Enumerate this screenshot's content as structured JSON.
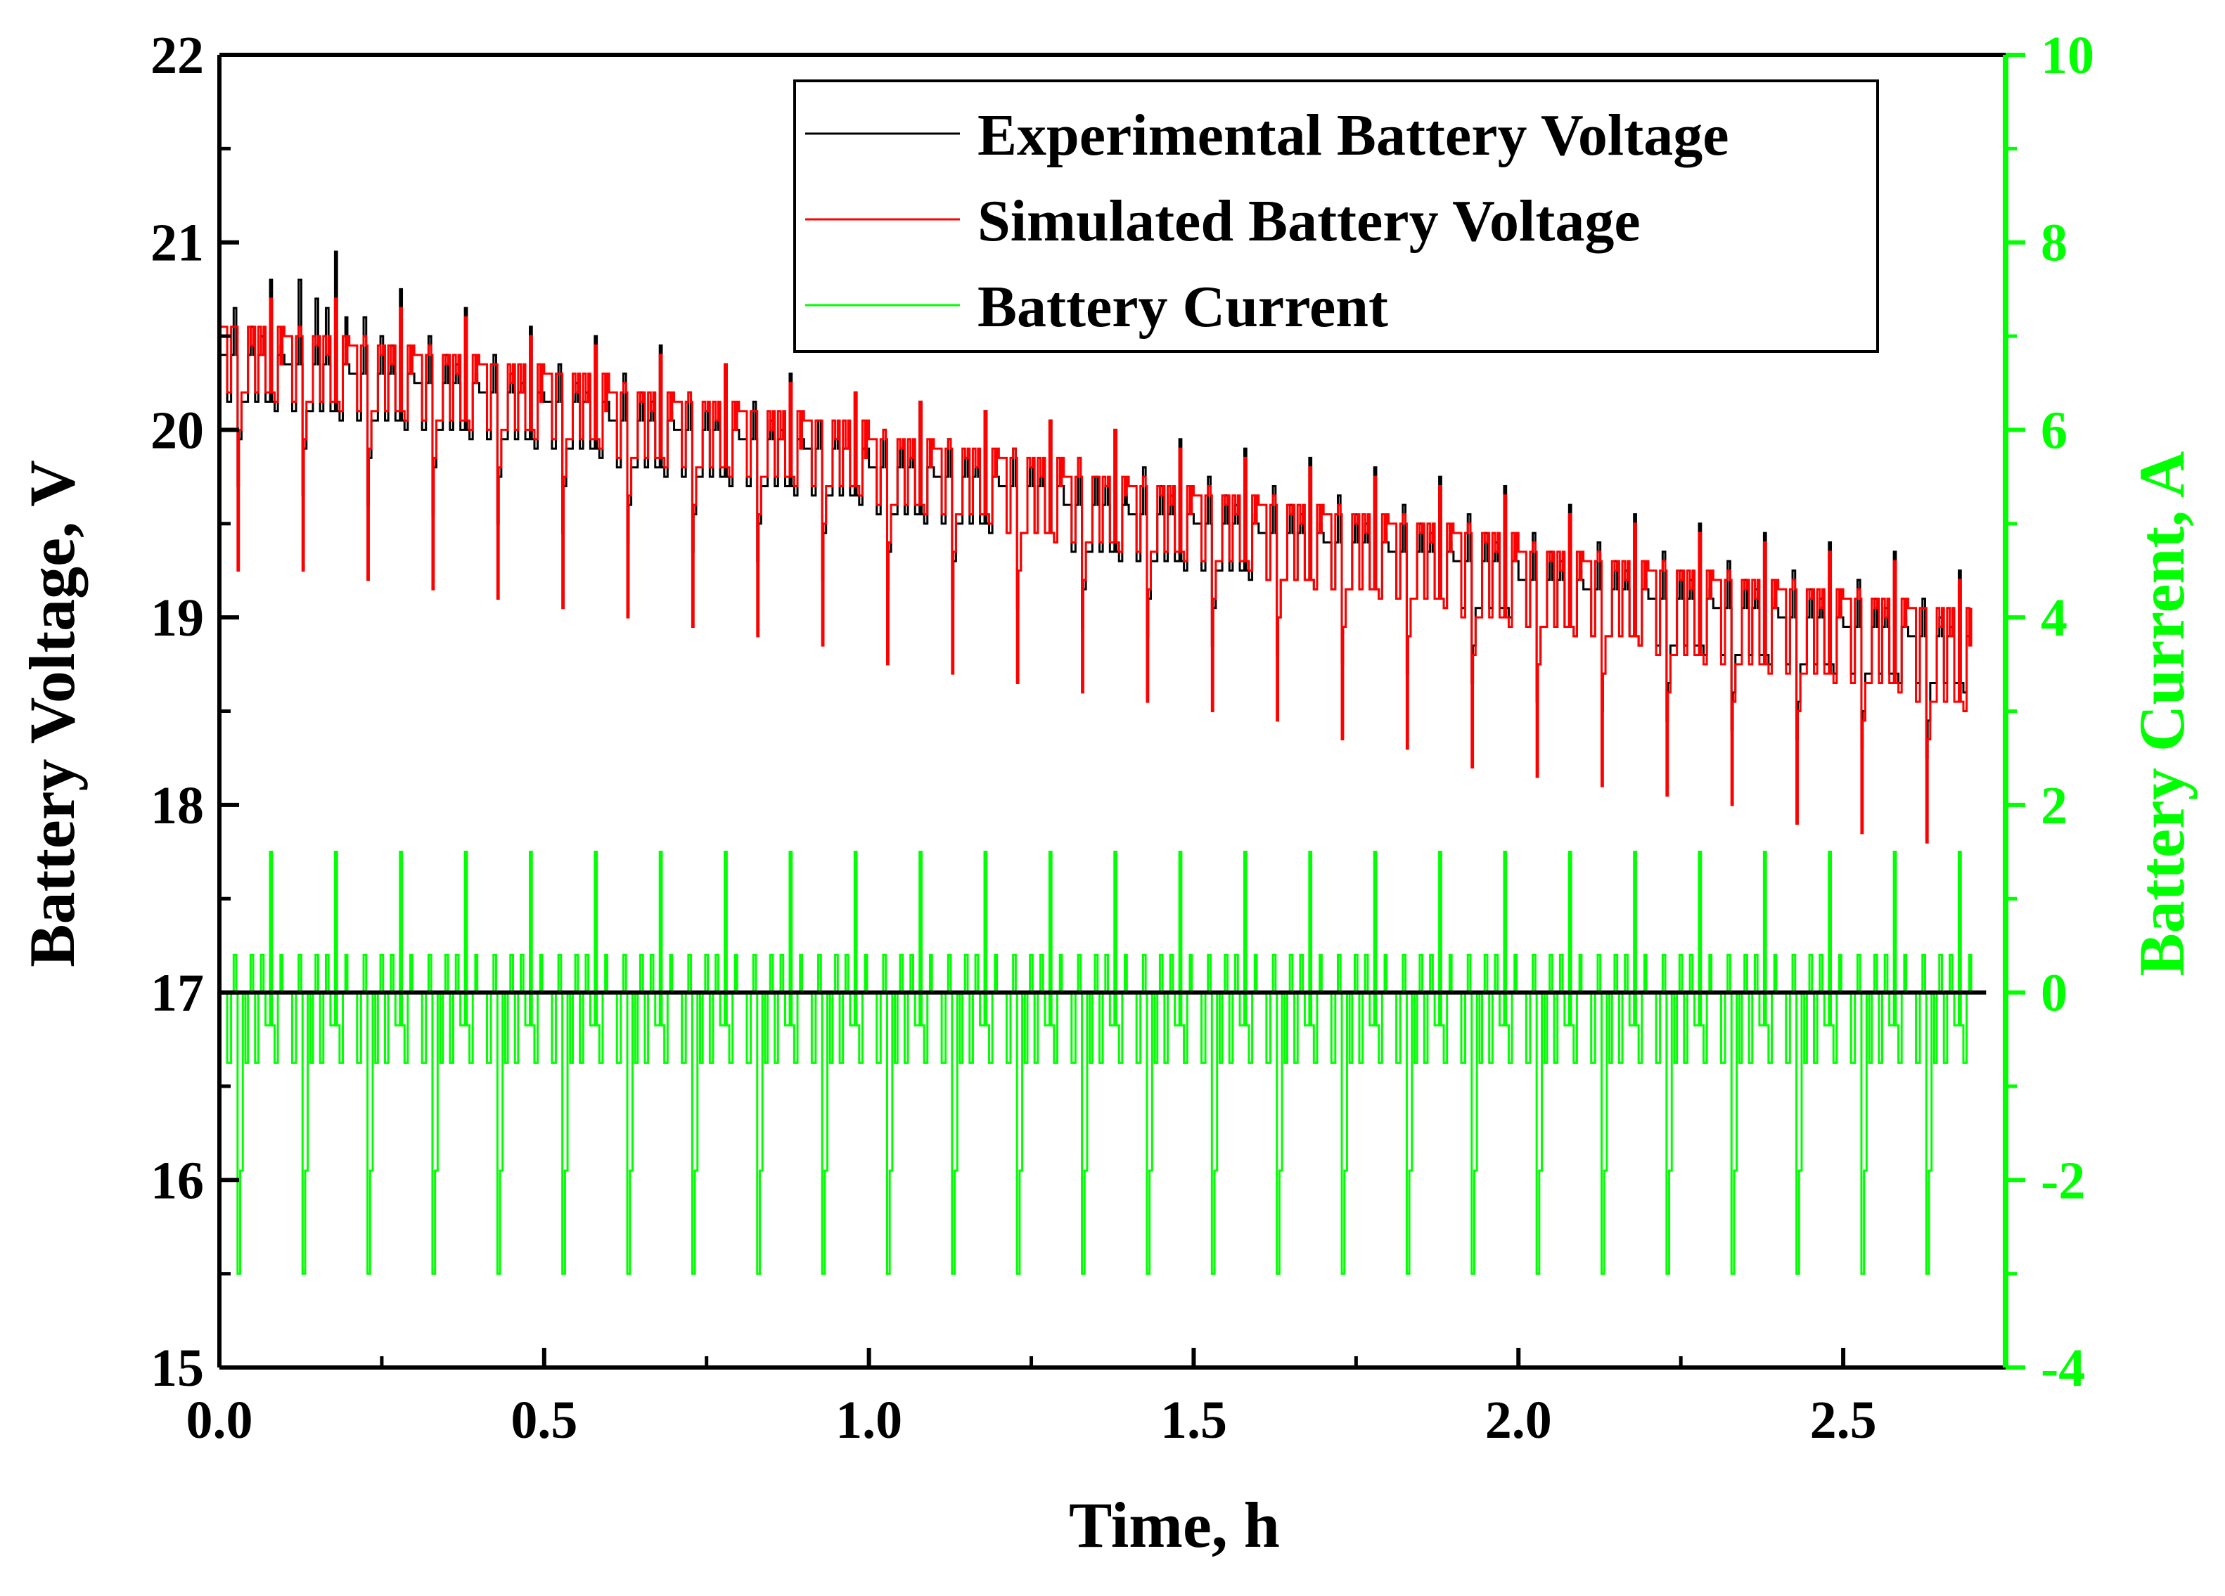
{
  "chart_data": {
    "type": "line",
    "title": "",
    "xlabel": "Time, h",
    "ylabel": "Battery Voltage, V",
    "y2label": "Battery Current, A",
    "xlim": [
      0.0,
      2.75
    ],
    "ylim": [
      15,
      22
    ],
    "y2lim": [
      -4,
      10
    ],
    "x_ticks": [
      "0.0",
      "0.5",
      "1.0",
      "1.5",
      "2.0",
      "2.5"
    ],
    "x_tick_values": [
      0.0,
      0.5,
      1.0,
      1.5,
      2.0,
      2.5
    ],
    "y_ticks": [
      "15",
      "16",
      "17",
      "18",
      "19",
      "20",
      "21",
      "22"
    ],
    "y_tick_values": [
      15,
      16,
      17,
      18,
      19,
      20,
      21,
      22
    ],
    "y2_ticks": [
      "-4",
      "-2",
      "0",
      "2",
      "4",
      "6",
      "8",
      "10"
    ],
    "y2_tick_values": [
      -4,
      -2,
      0,
      2,
      4,
      6,
      8,
      10
    ],
    "grid": false,
    "legend_position": "top-right",
    "series": [
      {
        "name": "Experimental Battery Voltage",
        "axis": "left",
        "color": "#000000",
        "cycle_period_h": 0.1,
        "cycle_start_h": [
          0.0,
          0.1,
          0.2,
          0.3,
          0.4,
          0.5,
          0.6,
          0.7,
          0.8,
          0.9,
          1.0,
          1.1,
          1.2,
          1.3,
          1.4,
          1.5,
          1.6,
          1.7,
          1.8,
          1.9,
          2.0,
          2.1,
          2.2,
          2.3,
          2.4,
          2.5,
          2.6
        ],
        "rest_voltage": [
          20.4,
          20.35,
          20.3,
          20.25,
          20.2,
          20.15,
          20.05,
          20.0,
          19.95,
          19.9,
          19.8,
          19.75,
          19.7,
          19.6,
          19.55,
          19.5,
          19.45,
          19.4,
          19.35,
          19.3,
          19.2,
          19.15,
          19.1,
          19.05,
          19.0,
          18.95,
          18.9
        ],
        "load_voltage": [
          20.15,
          20.1,
          20.05,
          20.0,
          19.95,
          19.9,
          19.8,
          19.75,
          19.7,
          19.65,
          19.55,
          19.5,
          19.45,
          19.35,
          19.3,
          19.25,
          19.2,
          19.15,
          19.1,
          19.05,
          18.95,
          18.9,
          18.85,
          18.8,
          18.75,
          18.7,
          18.65
        ],
        "dip_voltage": [
          19.7,
          19.65,
          19.6,
          19.55,
          19.5,
          19.45,
          19.4,
          19.35,
          19.3,
          19.2,
          19.15,
          19.1,
          19.05,
          18.95,
          18.9,
          18.85,
          18.8,
          18.75,
          18.7,
          18.65,
          18.55,
          18.5,
          18.45,
          18.4,
          18.35,
          18.3,
          18.25
        ],
        "peak_voltage": [
          20.8,
          20.95,
          20.75,
          20.65,
          20.55,
          20.5,
          20.45,
          20.35,
          20.3,
          20.2,
          20.15,
          20.1,
          20.05,
          20.0,
          19.95,
          19.9,
          19.85,
          19.8,
          19.75,
          19.7,
          19.6,
          19.55,
          19.5,
          19.45,
          19.4,
          19.35,
          19.25
        ]
      },
      {
        "name": "Simulated Battery Voltage",
        "axis": "left",
        "color": "#ff0000",
        "cycle_period_h": 0.1,
        "cycle_start_h": [
          0.0,
          0.1,
          0.2,
          0.3,
          0.4,
          0.5,
          0.6,
          0.7,
          0.8,
          0.9,
          1.0,
          1.1,
          1.2,
          1.3,
          1.4,
          1.5,
          1.6,
          1.7,
          1.8,
          1.9,
          2.0,
          2.1,
          2.2,
          2.3,
          2.4,
          2.5,
          2.6
        ],
        "rest_voltage": [
          20.55,
          20.5,
          20.45,
          20.4,
          20.35,
          20.3,
          20.2,
          20.15,
          20.1,
          20.05,
          19.95,
          19.9,
          19.85,
          19.75,
          19.7,
          19.65,
          19.6,
          19.55,
          19.5,
          19.45,
          19.35,
          19.3,
          19.25,
          19.2,
          19.15,
          19.1,
          19.05
        ],
        "load_voltage": [
          20.2,
          20.15,
          20.1,
          20.05,
          20.0,
          19.95,
          19.85,
          19.8,
          19.75,
          19.7,
          19.6,
          19.55,
          19.45,
          19.4,
          19.35,
          19.3,
          19.2,
          19.15,
          19.1,
          19.0,
          18.95,
          18.9,
          18.8,
          18.75,
          18.7,
          18.65,
          18.55
        ],
        "dip_voltage": [
          19.25,
          19.25,
          19.2,
          19.15,
          19.1,
          19.05,
          19.0,
          18.95,
          18.9,
          18.85,
          18.75,
          18.7,
          18.65,
          18.6,
          18.55,
          18.5,
          18.45,
          18.35,
          18.3,
          18.2,
          18.15,
          18.1,
          18.05,
          18.0,
          17.9,
          17.85,
          17.8
        ],
        "peak_voltage": [
          20.7,
          20.7,
          20.65,
          20.6,
          20.5,
          20.45,
          20.4,
          20.35,
          20.25,
          20.2,
          20.15,
          20.1,
          20.05,
          20.0,
          19.9,
          19.85,
          19.8,
          19.75,
          19.7,
          19.65,
          19.55,
          19.5,
          19.45,
          19.4,
          19.35,
          19.3,
          19.2
        ]
      },
      {
        "name": "Battery Current",
        "axis": "right",
        "color": "#00ff00",
        "cycle_period_h": 0.1,
        "levels_A": {
          "rest": 0.0,
          "charge_pulse": 0.4,
          "discharge_pulse": -0.75,
          "long_discharge": -0.35,
          "regen_peak": 1.5,
          "deep_discharge": -3.0,
          "intermediate": -1.9
        },
        "cycle_start_h": [
          0.0,
          0.1,
          0.2,
          0.3,
          0.4,
          0.5,
          0.6,
          0.7,
          0.8,
          0.9,
          1.0,
          1.1,
          1.2,
          1.3,
          1.4,
          1.5,
          1.6,
          1.7,
          1.8,
          1.9,
          2.0,
          2.1,
          2.2,
          2.3,
          2.4,
          2.5,
          2.6
        ]
      }
    ],
    "zero_current_line_A": 0
  }
}
